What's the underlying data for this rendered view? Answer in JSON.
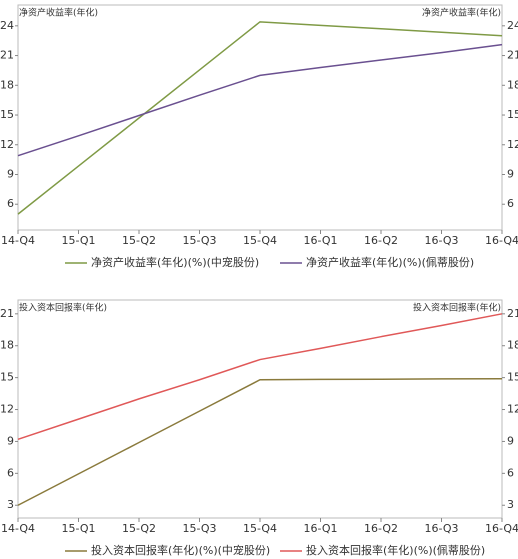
{
  "chart_data": [
    {
      "type": "line",
      "y_label": "净资产收益率(年化)",
      "y2_label": "净资产收益率(年化)",
      "categories": [
        "14-Q4",
        "15-Q1",
        "15-Q2",
        "15-Q3",
        "15-Q4",
        "16-Q1",
        "16-Q2",
        "16-Q3",
        "16-Q4"
      ],
      "series": [
        {
          "name": "净资产收益率(年化)(%)(中宠股份)",
          "color": "#7f9a45",
          "values": [
            5.0,
            9.85,
            14.7,
            19.55,
            24.4,
            24.05,
            23.7,
            23.35,
            23.0
          ]
        },
        {
          "name": "净资产收益率(年化)(%)(佩蒂股份)",
          "color": "#6a5090",
          "values": [
            10.9,
            12.9,
            14.95,
            17.0,
            19.0,
            19.8,
            20.55,
            21.3,
            22.1
          ]
        }
      ],
      "ylim": [
        3.4,
        26.1
      ],
      "yticks": [
        6,
        9,
        12,
        15,
        18,
        21,
        24
      ],
      "y2lim": [
        3.4,
        26.1
      ],
      "y2ticks": [
        6,
        9,
        12,
        15,
        18,
        21,
        24
      ]
    },
    {
      "type": "line",
      "y_label": "投入资本回报率(年化)",
      "y2_label": "投入资本回报率(年化)",
      "categories": [
        "14-Q4",
        "15-Q1",
        "15-Q2",
        "15-Q3",
        "15-Q4",
        "16-Q1",
        "16-Q2",
        "16-Q3",
        "16-Q4"
      ],
      "series": [
        {
          "name": "投入资本回报率(年化)(%)(中宠股份)",
          "color": "#8a7a3c",
          "values": [
            3.0,
            5.95,
            8.9,
            11.85,
            14.8,
            14.83,
            14.85,
            14.88,
            14.9
          ]
        },
        {
          "name": "投入资本回报率(年化)(%)(佩蒂股份)",
          "color": "#e05858",
          "values": [
            9.2,
            11.1,
            13.0,
            14.8,
            16.7,
            17.75,
            18.85,
            19.9,
            21.0
          ]
        }
      ],
      "ylim": [
        1.8,
        22.3
      ],
      "yticks": [
        3,
        6,
        9,
        12,
        15,
        18,
        21
      ],
      "y2lim": [
        1.8,
        22.3
      ],
      "y2ticks": [
        3,
        6,
        9,
        12,
        15,
        18,
        21
      ]
    }
  ]
}
